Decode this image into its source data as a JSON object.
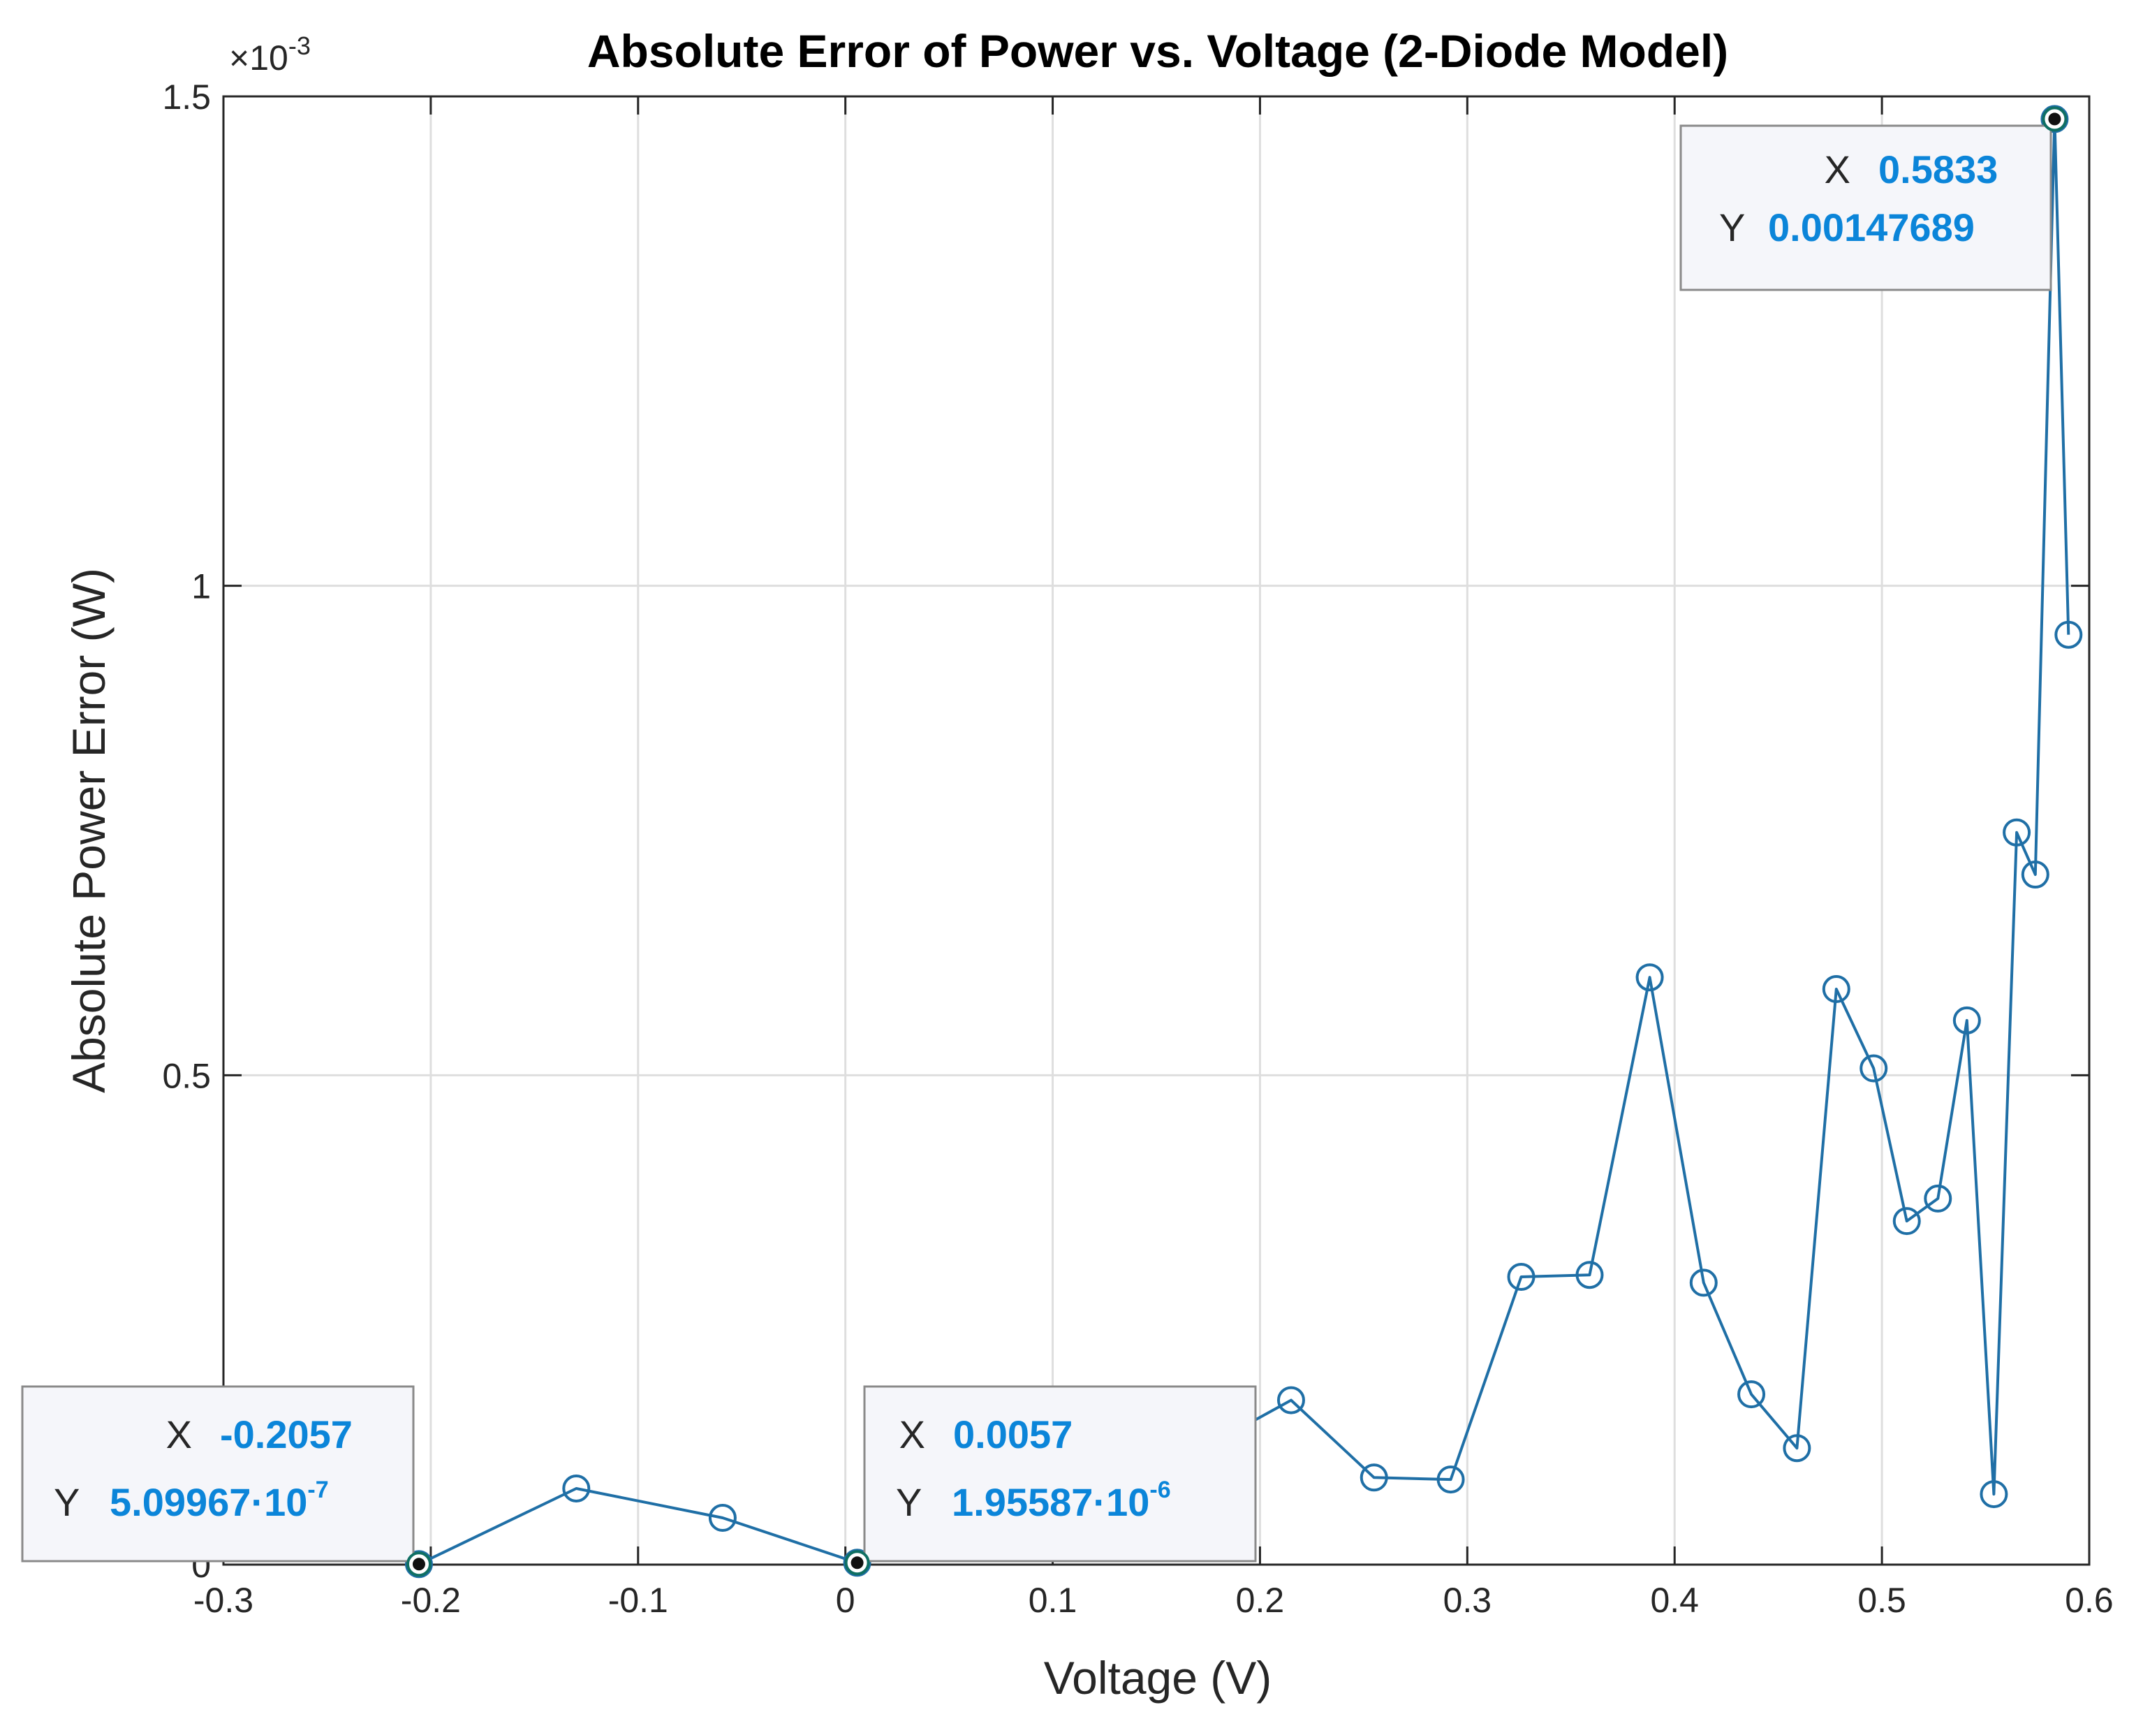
{
  "chart_data": {
    "type": "line",
    "title": "Absolute Error of Power vs. Voltage (2-Diode Model)",
    "xlabel": "Voltage (V)",
    "ylabel": "Absolute Power Error (W)",
    "y_multiplier_label": "×10",
    "y_multiplier_exponent": "-3",
    "xlim": [
      -0.3,
      0.6
    ],
    "ylim": [
      0,
      1.5
    ],
    "x_ticks": [
      "-0.3",
      "-0.2",
      "-0.1",
      "0",
      "0.1",
      "0.2",
      "0.3",
      "0.4",
      "0.5",
      "0.6"
    ],
    "y_ticks": [
      "0",
      "0.5",
      "1",
      "1.5"
    ],
    "grid": true,
    "series": [
      {
        "color": "#1f6fa6",
        "marker": "circle",
        "x": [
          -0.2057,
          -0.1298,
          -0.0592,
          0.0057,
          0.07,
          0.148,
          0.215,
          0.255,
          0.292,
          0.326,
          0.359,
          0.388,
          0.414,
          0.437,
          0.459,
          0.478,
          0.496,
          0.512,
          0.527,
          0.541,
          0.554,
          0.565,
          0.574,
          0.5833,
          0.59
        ],
        "y": [
          0.00051,
          0.0778,
          0.0478,
          0.00196,
          0.07,
          0.09,
          0.168,
          0.089,
          0.087,
          0.294,
          0.296,
          0.6,
          0.288,
          0.174,
          0.119,
          0.588,
          0.507,
          0.351,
          0.374,
          0.556,
          0.072,
          0.748,
          0.705,
          1.47689,
          0.95
        ]
      }
    ],
    "datatips": [
      {
        "x_label": "X",
        "x_value": "-0.2057",
        "y_label": "Y",
        "y_value": "5.09967·10",
        "y_exponent": "-7"
      },
      {
        "x_label": "X",
        "x_value": "0.0057",
        "y_label": "Y",
        "y_value": "1.95587·10",
        "y_exponent": "-6"
      },
      {
        "x_label": "X",
        "x_value": "0.5833",
        "y_label": "Y",
        "y_value": "0.00147689",
        "y_exponent": ""
      }
    ]
  }
}
